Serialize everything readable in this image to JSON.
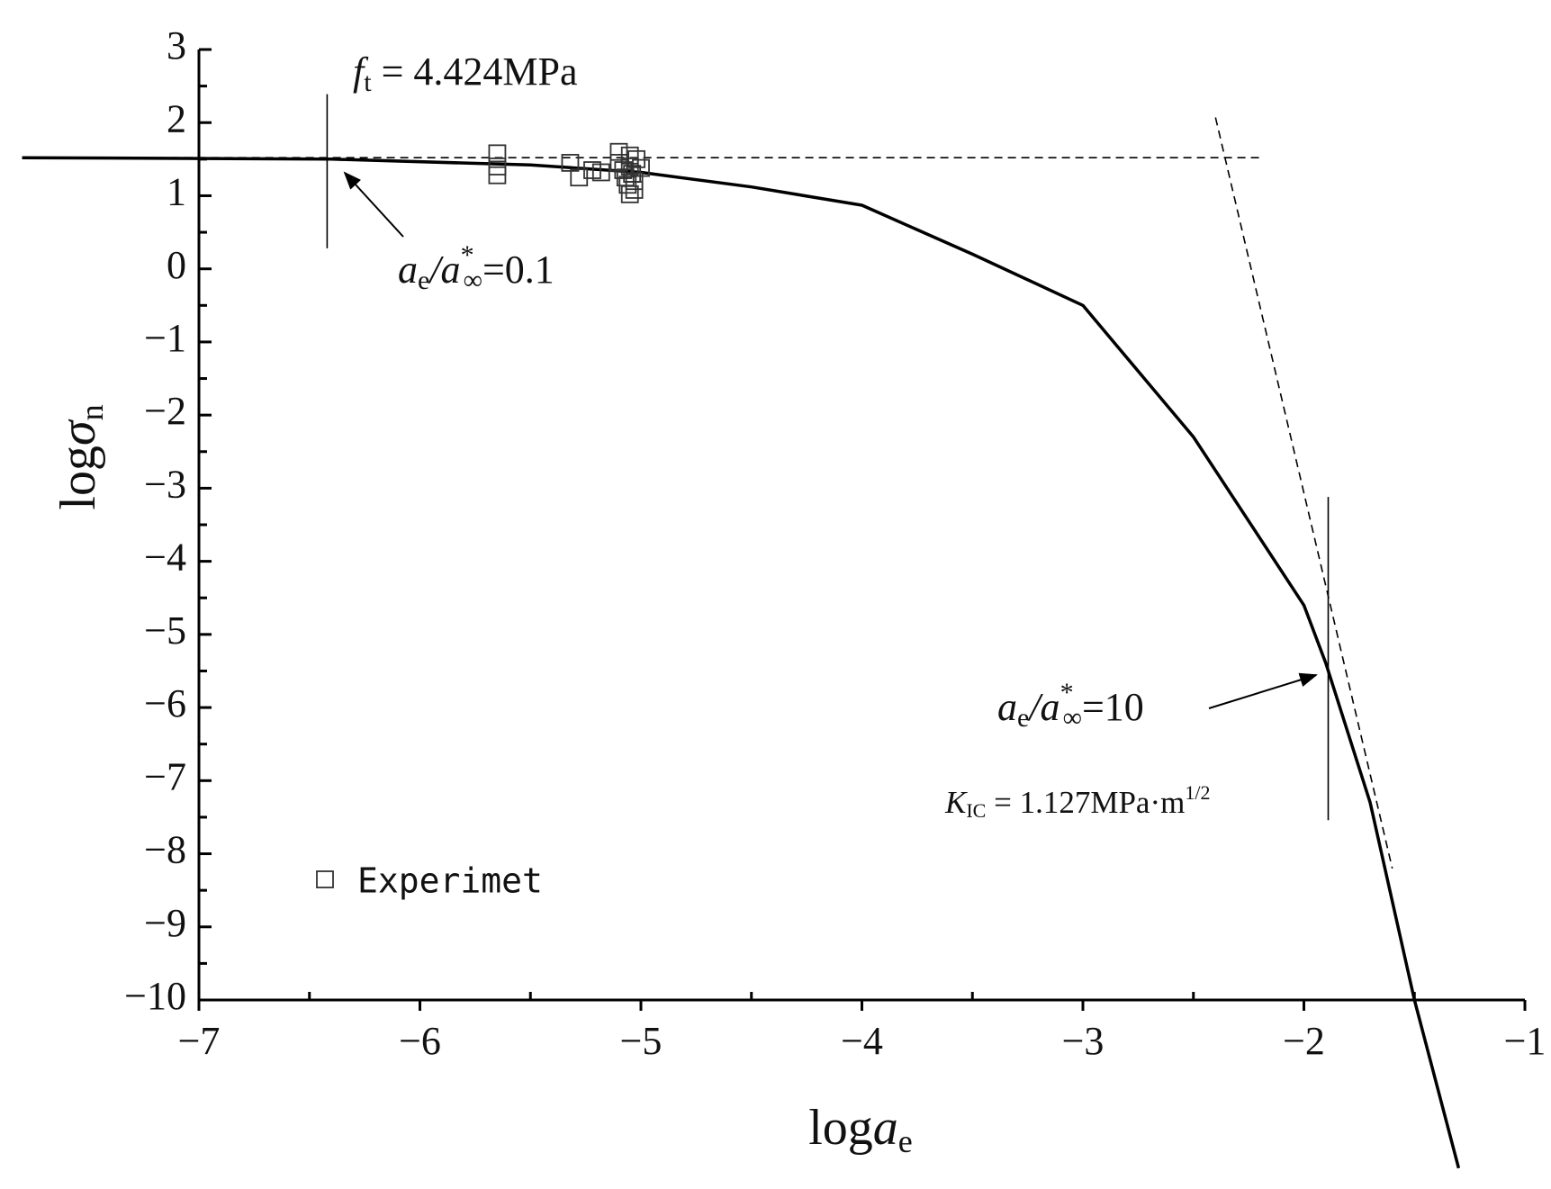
{
  "chart_data": {
    "type": "line",
    "xlabel": [
      "log",
      "a",
      "e"
    ],
    "ylabel": [
      "log",
      "σ",
      "n"
    ],
    "xlim": [
      -7,
      -1
    ],
    "ylim": [
      -10,
      3
    ],
    "xticks": [
      {
        "value": -7,
        "label": "−7"
      },
      {
        "value": -6,
        "label": "−6"
      },
      {
        "value": -5,
        "label": "−5"
      },
      {
        "value": -4,
        "label": "−4"
      },
      {
        "value": -3,
        "label": "−3"
      },
      {
        "value": -2,
        "label": "−2"
      },
      {
        "value": -1,
        "label": "−1"
      }
    ],
    "xminorticks": [
      -6.5,
      -5.5,
      -4.5,
      -3.5,
      -2.5,
      -1.5
    ],
    "yticks": [
      3,
      2,
      1,
      0,
      {
        "value": -1,
        "label": "−1"
      },
      {
        "value": -2,
        "label": "−2"
      },
      {
        "value": -3,
        "label": "−3"
      },
      {
        "value": -4,
        "label": "−4"
      },
      {
        "value": -5,
        "label": "−5"
      },
      {
        "value": -6,
        "label": "−6"
      },
      {
        "value": -7,
        "label": "−7"
      },
      {
        "value": -8,
        "label": "−8"
      },
      {
        "value": -9,
        "label": "−9"
      },
      {
        "value": -10,
        "label": "−10"
      }
    ],
    "yminorticks": [
      2.5,
      1.5,
      0.5,
      -0.5,
      -1.5,
      -2.5,
      -3.5,
      -4.5,
      -5.5,
      -6.5,
      -7.5,
      -8.5,
      -9.5
    ],
    "legend": "lower left",
    "series": [
      {
        "color": "#000000",
        "width": 3.5,
        "dash": false,
        "x": [
          -7.8,
          -6.4,
          -5.5,
          -5,
          -4.5,
          -4,
          -3.5,
          -3,
          -2.5,
          -2,
          -1.9,
          -1.7,
          -1.5,
          -1.3
        ],
        "values": [
          1.52,
          1.5,
          1.42,
          1.32,
          1.12,
          0.87,
          0.2,
          -0.5,
          -2.3,
          -4.6,
          -5.4,
          -7.3,
          -10,
          -12.3
        ]
      },
      {
        "color": "#000000",
        "width": 1.6,
        "dash": true,
        "x": [
          -7.8,
          -2.2
        ],
        "values": [
          1.52,
          1.52
        ]
      },
      {
        "color": "#000000",
        "width": 1.6,
        "dash": true,
        "x": [
          -2.4,
          -1.6
        ],
        "values": [
          2.07,
          -8.2
        ]
      },
      {
        "color": "#000000",
        "width": 1.6,
        "dash": false,
        "x": [
          -6.42,
          -6.42
        ],
        "values": [
          2.39,
          0.28
        ]
      },
      {
        "color": "#000000",
        "width": 1.6,
        "dash": false,
        "x": [
          -1.89,
          -1.89
        ],
        "values": [
          -3.12,
          -7.54
        ]
      },
      {
        "name": "Experimet",
        "type": "scatter",
        "marker": "square",
        "color": "#333333",
        "x": [
          -5.65,
          -5.65,
          -5.65,
          -5.32,
          -5.28,
          -5.22,
          -5.18,
          -5.1,
          -5.1,
          -5.08,
          -5.07,
          -5.06,
          -5.05,
          -5.05,
          -5.04,
          -5.03,
          -5.03,
          -5.02,
          -5.0,
          -5.05
        ],
        "values": [
          1.58,
          1.4,
          1.28,
          1.45,
          1.25,
          1.35,
          1.32,
          1.6,
          1.45,
          1.35,
          1.25,
          1.15,
          1.55,
          1.4,
          1.3,
          1.2,
          1.08,
          1.5,
          1.38,
          1.02
        ]
      }
    ],
    "annotations": [
      {
        "parts": [
          "f",
          "t",
          " = 4.424MPa"
        ]
      },
      {
        "parts": [
          "a",
          "e",
          "/a",
          "*",
          "∞",
          "=0.1"
        ]
      },
      {
        "parts": [
          "a",
          "e",
          "/a",
          "*",
          "∞",
          "=10"
        ]
      },
      {
        "parts": [
          "K",
          "IC",
          " = 1.127MPa·m",
          "1/2"
        ]
      }
    ]
  }
}
